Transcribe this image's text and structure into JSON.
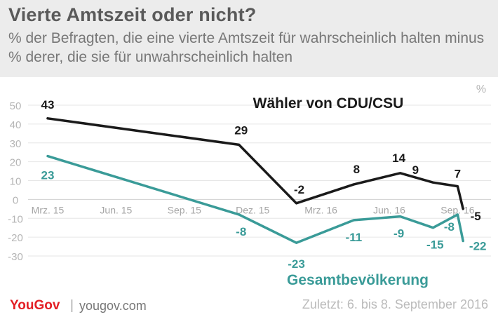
{
  "header": {
    "title": "Vierte Amtszeit oder nicht?",
    "subtitle": "% der Befragten, die eine vierte Amtszeit für wahrscheinlich halten minus % derer, die sie für unwahrscheinlich halten"
  },
  "chart_data": {
    "type": "line",
    "unit_label": "%",
    "ylim": [
      -30,
      50
    ],
    "yticks": [
      -30,
      -20,
      -10,
      0,
      10,
      20,
      30,
      40,
      50
    ],
    "xlim": [
      2015.17,
      2016.71
    ],
    "xticks": [
      {
        "x": 2015.17,
        "label": "Mrz. 15"
      },
      {
        "x": 2015.42,
        "label": "Jun. 15"
      },
      {
        "x": 2015.67,
        "label": "Sep. 15"
      },
      {
        "x": 2015.92,
        "label": "Dez. 15"
      },
      {
        "x": 2016.17,
        "label": "Mrz. 16"
      },
      {
        "x": 2016.42,
        "label": "Jun. 16"
      },
      {
        "x": 2016.67,
        "label": "Sep. 16"
      }
    ],
    "grid": true,
    "series": [
      {
        "name": "Wähler von CDU/CSU",
        "color": "#1a1a1a",
        "points": [
          {
            "x": 2015.17,
            "y": 43,
            "label": "43"
          },
          {
            "x": 2015.87,
            "y": 29,
            "label": "29"
          },
          {
            "x": 2016.08,
            "y": -2,
            "label": "-2"
          },
          {
            "x": 2016.29,
            "y": 8,
            "label": "8"
          },
          {
            "x": 2016.46,
            "y": 14,
            "label": "14"
          },
          {
            "x": 2016.58,
            "y": 9,
            "label": "9"
          },
          {
            "x": 2016.67,
            "y": 7,
            "label": "7"
          },
          {
            "x": 2016.69,
            "y": -5,
            "label": "-5"
          }
        ]
      },
      {
        "name": "Gesamtbevölkerung",
        "color": "#3a9b98",
        "points": [
          {
            "x": 2015.17,
            "y": 23,
            "label": "23"
          },
          {
            "x": 2015.87,
            "y": -8,
            "label": "-8"
          },
          {
            "x": 2016.08,
            "y": -23,
            "label": "-23"
          },
          {
            "x": 2016.29,
            "y": -11,
            "label": "-11"
          },
          {
            "x": 2016.46,
            "y": -9,
            "label": "-9"
          },
          {
            "x": 2016.58,
            "y": -15,
            "label": "-15"
          },
          {
            "x": 2016.67,
            "y": -8,
            "label": "-8"
          },
          {
            "x": 2016.69,
            "y": -22,
            "label": "-22"
          }
        ]
      }
    ]
  },
  "footer": {
    "logo": "YouGov",
    "separator": "|",
    "url": "yougov.com",
    "date": "Zuletzt: 6. bis 8. September 2016"
  }
}
